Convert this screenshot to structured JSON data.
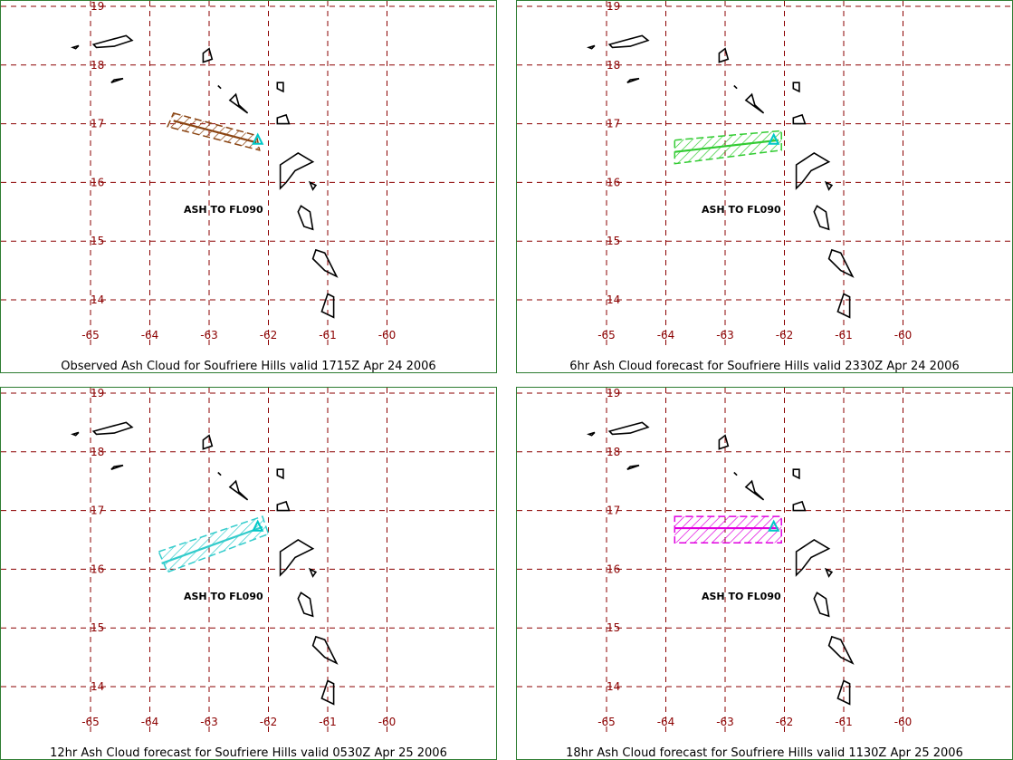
{
  "colors": {
    "grid": "#8b0000",
    "tick": "#8b0000",
    "border": "#2e7d32",
    "label": "#800080",
    "coast": "#000000",
    "volcano": "#00c8c8"
  },
  "axes": {
    "x_ticks": [
      "-65",
      "-64",
      "-63",
      "-62",
      "-61",
      "-60"
    ],
    "x_values": [
      -65,
      -64,
      -63,
      -62,
      -61,
      -60
    ],
    "y_ticks": [
      "19",
      "18",
      "17",
      "16",
      "15",
      "14"
    ],
    "y_values": [
      19,
      18,
      17,
      16,
      15,
      14
    ],
    "lon_range": [
      -65.5,
      -59.3
    ],
    "lat_range": [
      13.4,
      19.1
    ]
  },
  "volcano": {
    "name": "Soufriere Hills",
    "lon": -62.18,
    "lat": 16.72
  },
  "panels": [
    {
      "caption": "Observed Ash Cloud for Soufriere  Hills valid 1715Z Apr 24 2006",
      "ash_label": "ASH TO FL090",
      "cloud_color": "#8b4513",
      "cloud_polygon": [
        [
          -63.6,
          17.18
        ],
        [
          -62.2,
          16.8
        ],
        [
          -62.15,
          16.55
        ],
        [
          -63.7,
          16.95
        ]
      ],
      "centerline": [
        [
          -63.6,
          17.05
        ],
        [
          -62.2,
          16.68
        ]
      ]
    },
    {
      "caption": "6hr Ash Cloud forecast for Soufriere  Hills valid 2330Z Apr 24 2006",
      "ash_label": "ASH TO FL090",
      "cloud_color": "#33cc33",
      "cloud_polygon": [
        [
          -63.85,
          16.72
        ],
        [
          -62.05,
          16.88
        ],
        [
          -62.05,
          16.55
        ],
        [
          -63.85,
          16.32
        ]
      ],
      "centerline": [
        [
          -63.85,
          16.52
        ],
        [
          -62.1,
          16.72
        ]
      ]
    },
    {
      "caption": "12hr Ash Cloud forecast for Soufriere  Hills valid 0530Z Apr 25 2006",
      "ash_label": "ASH TO FL090",
      "cloud_color": "#33cccc",
      "cloud_polygon": [
        [
          -63.85,
          16.3
        ],
        [
          -62.1,
          16.9
        ],
        [
          -62.0,
          16.6
        ],
        [
          -63.7,
          15.95
        ]
      ],
      "centerline": [
        [
          -63.8,
          16.1
        ],
        [
          -62.1,
          16.72
        ]
      ]
    },
    {
      "caption": "18hr Ash Cloud forecast for Soufriere  Hills valid 1130Z Apr 25 2006",
      "ash_label": "ASH TO FL090",
      "cloud_color": "#e000e0",
      "cloud_polygon": [
        [
          -63.85,
          16.9
        ],
        [
          -62.05,
          16.9
        ],
        [
          -62.05,
          16.45
        ],
        [
          -63.85,
          16.45
        ]
      ],
      "centerline": [
        [
          -63.85,
          16.7
        ],
        [
          -62.1,
          16.7
        ]
      ]
    }
  ],
  "islands": [
    [
      [
        -64.95,
        18.35
      ],
      [
        -64.7,
        18.42
      ],
      [
        -64.4,
        18.5
      ],
      [
        -64.3,
        18.42
      ],
      [
        -64.6,
        18.32
      ],
      [
        -64.9,
        18.3
      ]
    ],
    [
      [
        -65.3,
        18.3
      ],
      [
        -65.2,
        18.33
      ],
      [
        -65.25,
        18.28
      ]
    ],
    [
      [
        -64.6,
        17.75
      ],
      [
        -64.45,
        17.77
      ],
      [
        -64.65,
        17.7
      ]
    ],
    [
      [
        -63.1,
        18.2
      ],
      [
        -63.0,
        18.28
      ],
      [
        -62.95,
        18.1
      ],
      [
        -63.1,
        18.05
      ]
    ],
    [
      [
        -62.85,
        17.65
      ],
      [
        -62.8,
        17.6
      ]
    ],
    [
      [
        -62.55,
        17.5
      ],
      [
        -62.65,
        17.4
      ],
      [
        -62.35,
        17.18
      ],
      [
        -62.5,
        17.32
      ]
    ],
    [
      [
        -61.85,
        17.7
      ],
      [
        -61.75,
        17.7
      ],
      [
        -61.75,
        17.55
      ],
      [
        -61.85,
        17.6
      ]
    ],
    [
      [
        -61.85,
        17.1
      ],
      [
        -61.7,
        17.15
      ],
      [
        -61.65,
        17.0
      ],
      [
        -61.85,
        17.0
      ]
    ],
    [
      [
        -61.8,
        16.3
      ],
      [
        -61.5,
        16.5
      ],
      [
        -61.25,
        16.35
      ],
      [
        -61.55,
        16.2
      ],
      [
        -61.7,
        16.0
      ],
      [
        -61.8,
        15.9
      ]
    ],
    [
      [
        -61.3,
        16.0
      ],
      [
        -61.2,
        15.95
      ],
      [
        -61.25,
        15.88
      ]
    ],
    [
      [
        -61.45,
        15.6
      ],
      [
        -61.3,
        15.5
      ],
      [
        -61.25,
        15.2
      ],
      [
        -61.4,
        15.25
      ],
      [
        -61.5,
        15.5
      ]
    ],
    [
      [
        -61.2,
        14.85
      ],
      [
        -61.05,
        14.8
      ],
      [
        -60.85,
        14.4
      ],
      [
        -61.05,
        14.5
      ],
      [
        -61.25,
        14.7
      ]
    ],
    [
      [
        -61.0,
        14.1
      ],
      [
        -60.9,
        14.05
      ],
      [
        -60.9,
        13.7
      ],
      [
        -61.1,
        13.8
      ]
    ]
  ]
}
